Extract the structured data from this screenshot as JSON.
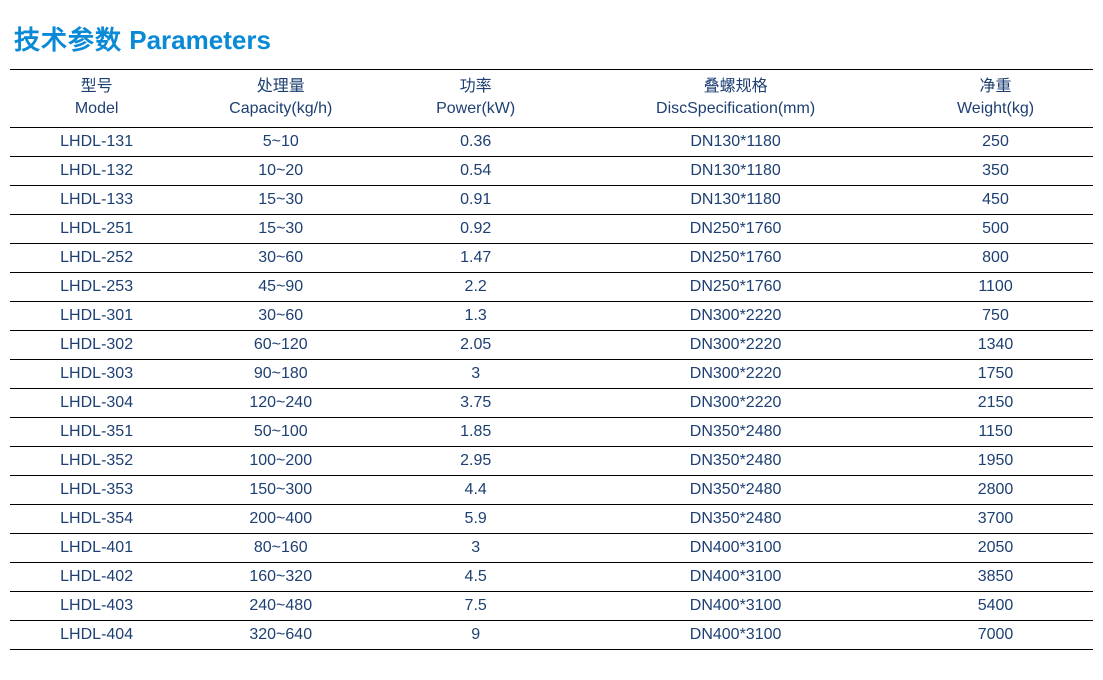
{
  "title": {
    "cn": "技术参数",
    "en": "Parameters",
    "color": "#0a8ad6"
  },
  "table": {
    "text_color": "#1d3f72",
    "col_widths_pct": [
      16,
      18,
      18,
      30,
      18
    ],
    "columns": [
      {
        "cn": "型号",
        "en": "Model"
      },
      {
        "cn": "处理量",
        "en": "Capacity(kg/h)"
      },
      {
        "cn": "功率",
        "en": "Power(kW)"
      },
      {
        "cn": "叠螺规格",
        "en": "DiscSpecification(mm)"
      },
      {
        "cn": "净重",
        "en": "Weight(kg)"
      }
    ],
    "rows": [
      [
        "LHDL-131",
        "5~10",
        "0.36",
        "DN130*1180",
        "250"
      ],
      [
        "LHDL-132",
        "10~20",
        "0.54",
        "DN130*1180",
        "350"
      ],
      [
        "LHDL-133",
        "15~30",
        "0.91",
        "DN130*1180",
        "450"
      ],
      [
        "LHDL-251",
        "15~30",
        "0.92",
        "DN250*1760",
        "500"
      ],
      [
        "LHDL-252",
        "30~60",
        "1.47",
        "DN250*1760",
        "800"
      ],
      [
        "LHDL-253",
        "45~90",
        "2.2",
        "DN250*1760",
        "1100"
      ],
      [
        "LHDL-301",
        "30~60",
        "1.3",
        "DN300*2220",
        "750"
      ],
      [
        "LHDL-302",
        "60~120",
        "2.05",
        "DN300*2220",
        "1340"
      ],
      [
        "LHDL-303",
        "90~180",
        "3",
        "DN300*2220",
        "1750"
      ],
      [
        "LHDL-304",
        "120~240",
        "3.75",
        "DN300*2220",
        "2150"
      ],
      [
        "LHDL-351",
        "50~100",
        "1.85",
        "DN350*2480",
        "1150"
      ],
      [
        "LHDL-352",
        "100~200",
        "2.95",
        "DN350*2480",
        "1950"
      ],
      [
        "LHDL-353",
        "150~300",
        "4.4",
        "DN350*2480",
        "2800"
      ],
      [
        "LHDL-354",
        "200~400",
        "5.9",
        "DN350*2480",
        "3700"
      ],
      [
        "LHDL-401",
        "80~160",
        "3",
        "DN400*3100",
        "2050"
      ],
      [
        "LHDL-402",
        "160~320",
        "4.5",
        "DN400*3100",
        "3850"
      ],
      [
        "LHDL-403",
        "240~480",
        "7.5",
        "DN400*3100",
        "5400"
      ],
      [
        "LHDL-404",
        "320~640",
        "9",
        "DN400*3100",
        "7000"
      ]
    ]
  }
}
